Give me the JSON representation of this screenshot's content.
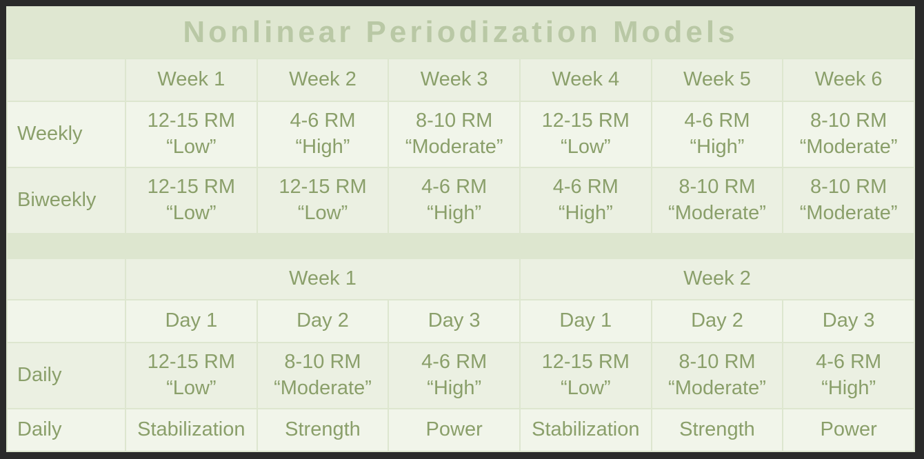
{
  "title": "Nonlinear Periodization Models",
  "top_table": {
    "weeks": [
      "Week 1",
      "Week 2",
      "Week 3",
      "Week 4",
      "Week 5",
      "Week 6"
    ],
    "rows": [
      {
        "label": "Weekly",
        "cells": [
          {
            "rm": "12-15 RM",
            "intensity": "“Low”"
          },
          {
            "rm": "4-6 RM",
            "intensity": "“High”"
          },
          {
            "rm": "8-10 RM",
            "intensity": "“Moderate”"
          },
          {
            "rm": "12-15 RM",
            "intensity": "“Low”"
          },
          {
            "rm": "4-6 RM",
            "intensity": "“High”"
          },
          {
            "rm": "8-10 RM",
            "intensity": "“Moderate”"
          }
        ]
      },
      {
        "label": "Biweekly",
        "cells": [
          {
            "rm": "12-15 RM",
            "intensity": "“Low”"
          },
          {
            "rm": "12-15 RM",
            "intensity": "“Low”"
          },
          {
            "rm": "4-6 RM",
            "intensity": "“High”"
          },
          {
            "rm": "4-6 RM",
            "intensity": "“High”"
          },
          {
            "rm": "8-10 RM",
            "intensity": "“Moderate”"
          },
          {
            "rm": "8-10 RM",
            "intensity": "“Moderate”"
          }
        ]
      }
    ]
  },
  "bottom_table": {
    "weeks": [
      "Week 1",
      "Week 2"
    ],
    "days": [
      "Day 1",
      "Day 2",
      "Day 3",
      "Day 1",
      "Day 2",
      "Day 3"
    ],
    "daily_row": {
      "label": "Daily",
      "cells": [
        {
          "rm": "12-15 RM",
          "intensity": "“Low”"
        },
        {
          "rm": "8-10 RM",
          "intensity": "“Moderate”"
        },
        {
          "rm": "4-6 RM",
          "intensity": "“High”"
        },
        {
          "rm": "12-15 RM",
          "intensity": "“Low”"
        },
        {
          "rm": "8-10 RM",
          "intensity": "“Moderate”"
        },
        {
          "rm": "4-6 RM",
          "intensity": "“High”"
        }
      ]
    },
    "focus_row": {
      "label": "Daily",
      "cells": [
        "Stabilization",
        "Strength",
        "Power",
        "Stabilization",
        "Strength",
        "Power"
      ]
    }
  }
}
